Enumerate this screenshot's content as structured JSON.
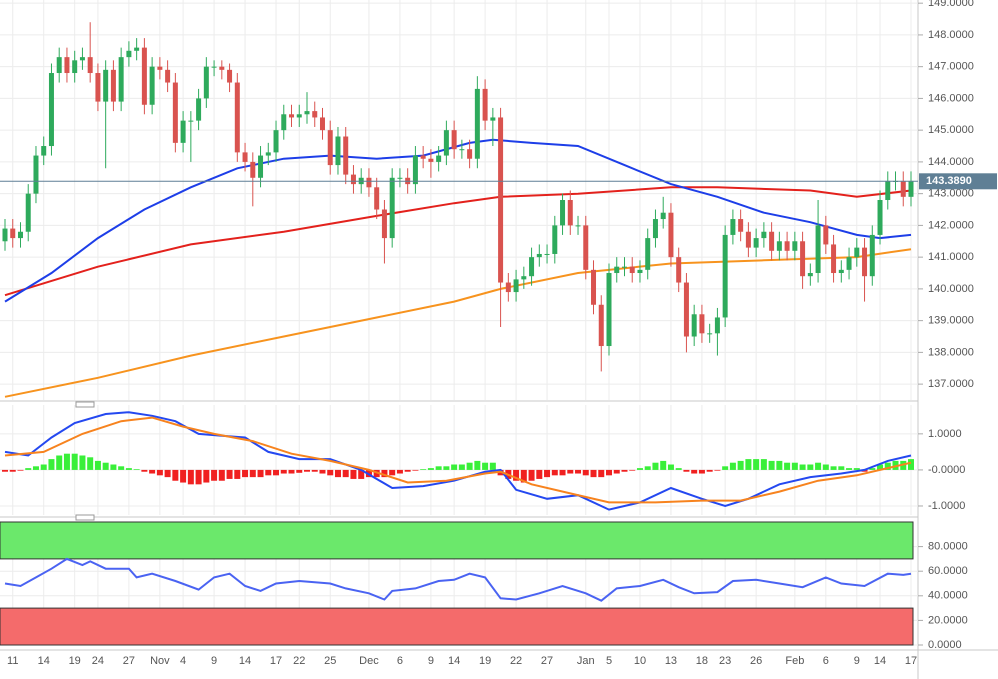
{
  "chart_data": [
    {
      "type": "candlestick",
      "up_color": "#2eaa5c",
      "down_color": "#d9534f",
      "grid": true,
      "ylim": [
        136.5,
        149.1
      ],
      "yticks": [
        {
          "value": 137,
          "label": "137.0000"
        },
        {
          "value": 138,
          "label": "138.0000"
        },
        {
          "value": 139,
          "label": "139.0000"
        },
        {
          "value": 140,
          "label": "140.0000"
        },
        {
          "value": 141,
          "label": "141.0000"
        },
        {
          "value": 142,
          "label": "142.0000"
        },
        {
          "value": 143,
          "label": "143.0000"
        },
        {
          "value": 144,
          "label": "144.0000"
        },
        {
          "value": 145,
          "label": "145.0000"
        },
        {
          "value": 146,
          "label": "146.0000"
        },
        {
          "value": 147,
          "label": "147.0000"
        },
        {
          "value": 148,
          "label": "148.0000"
        },
        {
          "value": 149,
          "label": "149.0000"
        }
      ],
      "last_price": 143.389,
      "last_price_label": "143.3890",
      "last_price_color": "#5f7f95",
      "categories": [
        null,
        "11",
        null,
        null,
        null,
        "14",
        null,
        null,
        null,
        "19",
        null,
        null,
        "24",
        null,
        null,
        null,
        "27",
        null,
        null,
        null,
        "Nov",
        null,
        null,
        "4",
        null,
        null,
        null,
        "9",
        null,
        null,
        null,
        "14",
        null,
        null,
        null,
        "17",
        null,
        null,
        "22",
        null,
        null,
        null,
        "25",
        null,
        null,
        null,
        null,
        "Dec",
        null,
        null,
        null,
        "6",
        null,
        null,
        null,
        "9",
        null,
        null,
        "14",
        null,
        null,
        null,
        "19",
        null,
        null,
        null,
        "22",
        null,
        null,
        null,
        "27",
        null,
        null,
        null,
        null,
        "Jan",
        null,
        null,
        "5",
        null,
        null,
        null,
        "10",
        null,
        null,
        null,
        "13",
        null,
        null,
        null,
        "18",
        null,
        null,
        "23",
        null,
        null,
        null,
        "26",
        null,
        null,
        null,
        null,
        "Feb",
        null,
        null,
        null,
        "6",
        null,
        null,
        null,
        "9",
        null,
        null,
        "14",
        null,
        null,
        null,
        "17"
      ],
      "open": [
        141.5,
        141.9,
        141.6,
        141.8,
        143.0,
        144.2,
        144.5,
        146.8,
        147.3,
        146.8,
        147.2,
        147.3,
        146.8,
        145.9,
        146.9,
        145.9,
        147.3,
        147.5,
        147.6,
        145.8,
        147.0,
        146.9,
        146.5,
        144.6,
        145.3,
        145.3,
        146.0,
        147.0,
        147.0,
        146.9,
        146.5,
        144.3,
        144.0,
        143.5,
        144.2,
        144.3,
        145.0,
        145.5,
        145.4,
        145.5,
        145.6,
        145.4,
        145.0,
        143.9,
        144.8,
        143.6,
        143.3,
        143.5,
        143.2,
        142.5,
        141.6,
        143.5,
        143.5,
        143.3,
        144.2,
        144.1,
        144.0,
        144.2,
        145.0,
        144.4,
        144.4,
        144.1,
        146.3,
        145.3,
        145.4,
        140.2,
        139.9,
        140.3,
        140.4,
        141.0,
        141.1,
        141.1,
        142.0,
        142.8,
        142.0,
        142.0,
        140.6,
        139.5,
        138.2,
        140.5,
        140.7,
        140.7,
        140.5,
        140.6,
        141.6,
        142.2,
        142.4,
        141.0,
        140.2,
        138.5,
        139.2,
        138.6,
        138.6,
        139.1,
        141.7,
        142.2,
        141.8,
        141.3,
        141.6,
        141.8,
        141.2,
        141.5,
        141.2,
        141.5,
        140.4,
        140.5,
        142.0,
        141.4,
        140.5,
        140.6,
        141.0,
        141.3,
        140.4,
        141.7,
        142.8,
        143.4,
        143.4,
        142.9
      ],
      "high": [
        142.2,
        142.2,
        142.1,
        143.3,
        144.5,
        144.8,
        147.1,
        147.6,
        147.6,
        147.5,
        147.6,
        148.4,
        147.1,
        147.2,
        147.2,
        147.6,
        147.8,
        147.9,
        147.9,
        147.3,
        147.3,
        147.2,
        146.8,
        145.6,
        145.6,
        146.3,
        147.3,
        147.2,
        147.2,
        147.1,
        146.8,
        144.6,
        144.3,
        144.5,
        144.6,
        145.3,
        145.8,
        145.8,
        145.8,
        146.2,
        145.9,
        145.7,
        145.3,
        145.1,
        145.1,
        143.9,
        143.8,
        143.8,
        143.5,
        142.8,
        143.8,
        143.8,
        143.8,
        144.5,
        144.5,
        144.4,
        144.5,
        145.3,
        145.3,
        144.7,
        144.7,
        146.7,
        146.6,
        145.7,
        145.7,
        140.5,
        140.6,
        140.7,
        141.3,
        141.4,
        141.4,
        142.3,
        143.0,
        143.1,
        142.3,
        142.3,
        140.9,
        139.8,
        140.8,
        141.0,
        141.0,
        141.0,
        140.9,
        141.9,
        142.5,
        142.9,
        142.7,
        141.3,
        140.5,
        139.5,
        139.5,
        138.9,
        139.4,
        142.0,
        142.5,
        142.5,
        142.1,
        141.9,
        142.1,
        142.1,
        141.8,
        141.8,
        141.8,
        141.8,
        140.8,
        142.8,
        142.3,
        141.7,
        140.9,
        141.3,
        141.6,
        141.6,
        142.0,
        143.1,
        143.7,
        143.7,
        143.7,
        143.7
      ],
      "low": [
        141.2,
        141.3,
        141.3,
        141.5,
        142.7,
        143.9,
        144.2,
        146.5,
        146.5,
        146.5,
        146.9,
        146.5,
        145.6,
        143.8,
        145.6,
        145.6,
        147.0,
        147.2,
        145.5,
        145.5,
        146.6,
        146.2,
        144.3,
        144.3,
        144.0,
        145.0,
        145.7,
        146.7,
        146.6,
        146.2,
        144.0,
        143.7,
        142.6,
        143.2,
        143.9,
        144.0,
        144.7,
        145.1,
        145.1,
        145.2,
        145.1,
        144.7,
        143.6,
        143.6,
        143.3,
        143.0,
        143.0,
        142.9,
        142.2,
        140.8,
        141.3,
        143.2,
        143.0,
        143.0,
        143.8,
        143.5,
        143.7,
        143.9,
        144.1,
        144.1,
        143.8,
        143.8,
        145.0,
        144.5,
        138.8,
        139.6,
        139.6,
        140.0,
        140.1,
        140.7,
        140.8,
        140.8,
        141.7,
        141.7,
        141.7,
        140.3,
        139.2,
        137.4,
        137.9,
        140.2,
        140.4,
        140.2,
        140.2,
        140.3,
        141.3,
        141.9,
        140.7,
        139.9,
        138.0,
        138.2,
        138.3,
        138.3,
        137.9,
        138.8,
        141.4,
        141.5,
        141.0,
        141.0,
        141.3,
        140.9,
        140.9,
        140.9,
        140.9,
        140.0,
        140.1,
        140.2,
        141.1,
        140.2,
        140.2,
        140.3,
        140.7,
        139.6,
        140.1,
        141.4,
        142.5,
        143.1,
        142.6,
        142.6
      ],
      "close": [
        141.9,
        141.6,
        141.8,
        143.0,
        144.2,
        144.5,
        146.8,
        147.3,
        146.8,
        147.2,
        147.3,
        146.8,
        145.9,
        146.9,
        145.9,
        147.3,
        147.5,
        147.6,
        145.8,
        147.0,
        146.9,
        146.5,
        144.6,
        145.3,
        145.3,
        146.0,
        147.0,
        147.0,
        146.9,
        146.5,
        144.3,
        144.0,
        143.5,
        144.2,
        144.3,
        145.0,
        145.5,
        145.4,
        145.5,
        145.6,
        145.4,
        145.0,
        143.9,
        144.8,
        143.6,
        143.3,
        143.5,
        143.2,
        142.5,
        141.6,
        143.5,
        143.5,
        143.3,
        144.2,
        144.1,
        144.0,
        144.2,
        145.0,
        144.4,
        144.4,
        144.1,
        146.3,
        145.3,
        145.4,
        140.2,
        139.9,
        140.3,
        140.4,
        141.0,
        141.1,
        141.1,
        142.0,
        142.8,
        142.0,
        142.0,
        140.6,
        139.5,
        138.2,
        140.5,
        140.7,
        140.7,
        140.5,
        140.6,
        141.6,
        142.2,
        142.4,
        141.0,
        140.2,
        138.5,
        139.2,
        138.6,
        138.6,
        139.1,
        141.7,
        142.2,
        141.8,
        141.3,
        141.6,
        141.8,
        141.2,
        141.5,
        141.2,
        141.5,
        140.4,
        140.5,
        142.0,
        141.4,
        140.5,
        140.6,
        141.0,
        141.3,
        140.4,
        141.7,
        142.8,
        143.4,
        143.4,
        142.9,
        143.4
      ],
      "series": [
        {
          "color": "#f7931e",
          "x": [
            0,
            12,
            24,
            36,
            48,
            58,
            64,
            74,
            86,
            98,
            110,
            117
          ],
          "values": [
            136.6,
            137.2,
            137.9,
            138.5,
            139.1,
            139.6,
            140.0,
            140.5,
            140.8,
            140.9,
            141.0,
            141.25
          ]
        },
        {
          "color": "#e3211c",
          "x": [
            0,
            12,
            24,
            36,
            48,
            58,
            64,
            74,
            86,
            92,
            104,
            110,
            117
          ],
          "values": [
            139.8,
            140.7,
            141.4,
            141.8,
            142.3,
            142.7,
            142.9,
            143.0,
            143.2,
            143.2,
            143.1,
            142.9,
            143.1
          ]
        },
        {
          "color": "#1d3ee8",
          "x": [
            0,
            6,
            12,
            18,
            24,
            30,
            36,
            42,
            48,
            54,
            60,
            63,
            68,
            74,
            80,
            86,
            92,
            98,
            104,
            110,
            113,
            117
          ],
          "values": [
            139.6,
            140.5,
            141.6,
            142.5,
            143.2,
            143.8,
            144.1,
            144.2,
            144.1,
            144.2,
            144.6,
            144.7,
            144.6,
            144.5,
            143.9,
            143.3,
            142.9,
            142.4,
            142.1,
            141.7,
            141.6,
            141.7
          ]
        }
      ]
    },
    {
      "type": "macd",
      "grid": true,
      "ylim": [
        -1.25,
        1.8
      ],
      "yticks": [
        {
          "value": 1,
          "label": "1.0000"
        },
        {
          "value": 0,
          "label": "-0.0000"
        },
        {
          "value": -1,
          "label": "-1.0000"
        }
      ],
      "up_color": "#39ef39",
      "down_color": "#f02020",
      "histogram": [
        -0.05,
        -0.05,
        -0.02,
        0.05,
        0.1,
        0.15,
        0.3,
        0.4,
        0.45,
        0.45,
        0.4,
        0.35,
        0.25,
        0.2,
        0.15,
        0.1,
        0.05,
        0.02,
        -0.05,
        -0.1,
        -0.15,
        -0.2,
        -0.3,
        -0.35,
        -0.4,
        -0.4,
        -0.35,
        -0.3,
        -0.3,
        -0.25,
        -0.25,
        -0.2,
        -0.2,
        -0.2,
        -0.15,
        -0.15,
        -0.1,
        -0.1,
        -0.08,
        -0.05,
        -0.05,
        -0.1,
        -0.15,
        -0.2,
        -0.2,
        -0.25,
        -0.25,
        -0.2,
        -0.2,
        -0.2,
        -0.15,
        -0.1,
        -0.05,
        -0.02,
        0.02,
        0.05,
        0.1,
        0.1,
        0.15,
        0.15,
        0.2,
        0.25,
        0.2,
        0.2,
        -0.15,
        -0.25,
        -0.3,
        -0.35,
        -0.3,
        -0.25,
        -0.2,
        -0.15,
        -0.15,
        -0.1,
        -0.1,
        -0.15,
        -0.2,
        -0.2,
        -0.15,
        -0.1,
        -0.05,
        -0.02,
        0.05,
        0.1,
        0.2,
        0.25,
        0.15,
        0.05,
        -0.05,
        -0.1,
        -0.1,
        -0.05,
        -0.02,
        0.1,
        0.2,
        0.25,
        0.3,
        0.3,
        0.3,
        0.25,
        0.25,
        0.2,
        0.2,
        0.15,
        0.15,
        0.2,
        0.15,
        0.1,
        0.1,
        0.05,
        0.05,
        -0.05,
        0.05,
        0.15,
        0.2,
        0.25,
        0.25,
        0.3
      ],
      "series": [
        {
          "color": "#2448f0",
          "x": [
            0,
            3,
            6,
            9,
            13,
            16,
            19,
            22,
            25,
            28,
            31,
            34,
            38,
            42,
            46,
            50,
            54,
            58,
            62,
            64,
            66,
            70,
            74,
            78,
            82,
            86,
            90,
            93,
            96,
            100,
            104,
            108,
            111,
            114,
            117
          ],
          "values": [
            0.5,
            0.4,
            0.9,
            1.3,
            1.55,
            1.6,
            1.5,
            1.35,
            1.0,
            0.95,
            0.9,
            0.5,
            0.3,
            0.3,
            0.0,
            -0.5,
            -0.45,
            -0.3,
            -0.05,
            0.0,
            -0.55,
            -0.8,
            -0.7,
            -1.1,
            -0.9,
            -0.5,
            -0.8,
            -1.0,
            -0.8,
            -0.4,
            -0.2,
            -0.1,
            0.0,
            0.25,
            0.4
          ]
        },
        {
          "color": "#f7831e",
          "x": [
            0,
            5,
            10,
            15,
            19,
            23,
            27,
            32,
            37,
            42,
            47,
            52,
            57,
            62,
            64,
            68,
            73,
            78,
            84,
            90,
            95,
            100,
            105,
            110,
            117
          ],
          "values": [
            0.4,
            0.5,
            1.0,
            1.35,
            1.45,
            1.2,
            1.0,
            0.8,
            0.45,
            0.25,
            0.0,
            -0.35,
            -0.3,
            -0.1,
            -0.05,
            -0.4,
            -0.65,
            -0.9,
            -0.9,
            -0.85,
            -0.85,
            -0.6,
            -0.3,
            -0.15,
            0.2
          ]
        }
      ]
    },
    {
      "type": "rsi",
      "grid": true,
      "ylim": [
        0,
        100
      ],
      "yticks": [
        {
          "value": 0,
          "label": "0.0000"
        },
        {
          "value": 20,
          "label": "20.0000"
        },
        {
          "value": 40,
          "label": "40.0000"
        },
        {
          "value": 60,
          "label": "60.0000"
        },
        {
          "value": 80,
          "label": "80.0000"
        }
      ],
      "overbought": 70,
      "oversold": 30,
      "overbought_color": "#6be86b",
      "oversold_color": "#f46b6b",
      "series": [
        {
          "color": "#4a63f2",
          "x": [
            0,
            2,
            4,
            6,
            8,
            10,
            11,
            13,
            16,
            17,
            19,
            22,
            25,
            27,
            29,
            31,
            33,
            35,
            38,
            42,
            44,
            47,
            49,
            50,
            53,
            56,
            58,
            60,
            62,
            64,
            66,
            69,
            72,
            75,
            77,
            79,
            82,
            85,
            87,
            89,
            92,
            94,
            97,
            100,
            103,
            106,
            108,
            111,
            114,
            116,
            117
          ],
          "values": [
            50,
            48,
            55,
            62,
            70,
            65,
            68,
            62,
            62,
            55,
            58,
            52,
            45,
            55,
            58,
            48,
            44,
            50,
            52,
            50,
            46,
            42,
            37,
            44,
            46,
            52,
            53,
            58,
            55,
            38,
            37,
            42,
            48,
            42,
            36,
            46,
            48,
            53,
            47,
            42,
            43,
            52,
            53,
            50,
            47,
            55,
            50,
            48,
            58,
            57,
            58
          ]
        }
      ]
    }
  ]
}
